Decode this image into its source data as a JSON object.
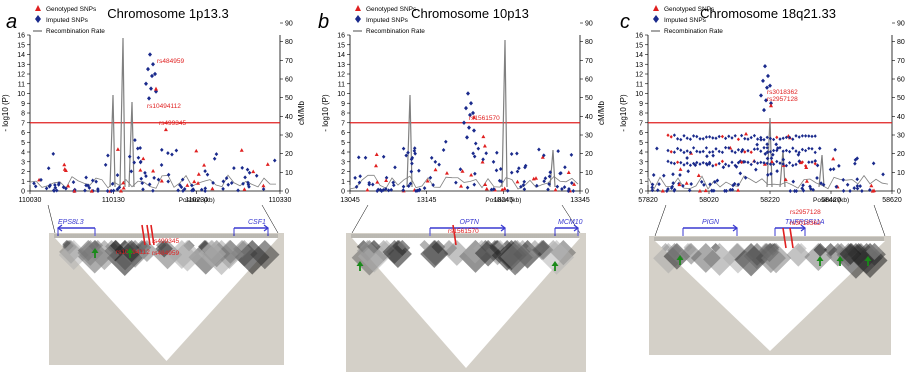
{
  "colors": {
    "genotyped": "#e02020",
    "imputed": "#1a2a8c",
    "recomb": "#808080",
    "threshold": "#e02020",
    "gene": "#3a3ad0",
    "arrow": "#1a8a1a",
    "ld_bg": "#d4d0c8"
  },
  "panels": [
    {
      "id": "a",
      "letter": "a",
      "title": "Chromosome 1p13.3",
      "legend": [
        "Genotyped SNPs",
        "Imputed SNPs",
        "Recombination Rate"
      ],
      "y_label": "- log10 (P)",
      "y2_label": "cM/Mb",
      "x_label": "Position (kb)",
      "y_ticks": [
        "0",
        "1",
        "2",
        "3",
        "4",
        "5",
        "6",
        "7",
        "8",
        "9",
        "10",
        "11",
        "12",
        "13",
        "14",
        "15",
        "16"
      ],
      "y2_ticks": [
        "0",
        "10",
        "20",
        "30",
        "40",
        "50",
        "60",
        "70",
        "80",
        "90"
      ],
      "x_ticks": [
        "110030",
        "110130",
        "110230",
        "110330"
      ],
      "snp_labels": [
        "rs484959",
        "rs10494112",
        "rs499345"
      ],
      "ld_snp_labels": [
        "rs499345",
        "rs10494112",
        "rs484959"
      ],
      "genes": [
        "EPS8L3",
        "CSF1"
      ]
    },
    {
      "id": "b",
      "letter": "b",
      "title": "Chromosome 10p13",
      "legend": [
        "Genotyped SNPs",
        "Imputed SNPs",
        "Recombination Rate"
      ],
      "y_label": "- log10 (P)",
      "y2_label": "cM/Mb",
      "x_label": "Position (kb)",
      "y_ticks": [
        "0",
        "1",
        "2",
        "3",
        "4",
        "5",
        "6",
        "7",
        "8",
        "9",
        "10",
        "11",
        "12",
        "13",
        "14",
        "15",
        "16"
      ],
      "y2_ticks": [
        "0",
        "10",
        "20",
        "30",
        "40",
        "50",
        "60",
        "70",
        "80",
        "90"
      ],
      "x_ticks": [
        "13045",
        "13145",
        "13245",
        "13345"
      ],
      "snp_labels": [
        "rs1561570"
      ],
      "ld_snp_labels": [
        "rs1561570"
      ],
      "genes": [
        "OPTN",
        "MCM10"
      ]
    },
    {
      "id": "c",
      "letter": "c",
      "title": "Chromosome 18q21.33",
      "legend": [
        "Genotyped SNPs",
        "Imputed SNPs",
        "Recombination Rate"
      ],
      "y_label": "- log10 (P)",
      "y2_label": "cM/Mb",
      "x_label": "Position (kb)",
      "y_ticks": [
        "0",
        "1",
        "2",
        "3",
        "4",
        "5",
        "6",
        "7",
        "8",
        "9",
        "10",
        "11",
        "12",
        "13",
        "14",
        "15",
        "16"
      ],
      "y2_ticks": [
        "0",
        "10",
        "20",
        "30",
        "40",
        "50",
        "60",
        "70",
        "80",
        "90"
      ],
      "x_ticks": [
        "57820",
        "58020",
        "58220",
        "58420",
        "58620"
      ],
      "snp_labels": [
        "rs3018362",
        "rs2957128"
      ],
      "ld_snp_labels": [
        "rs2957128",
        "rs3018362"
      ],
      "genes": [
        "PIGN",
        "TNFRSF11A"
      ]
    }
  ]
}
